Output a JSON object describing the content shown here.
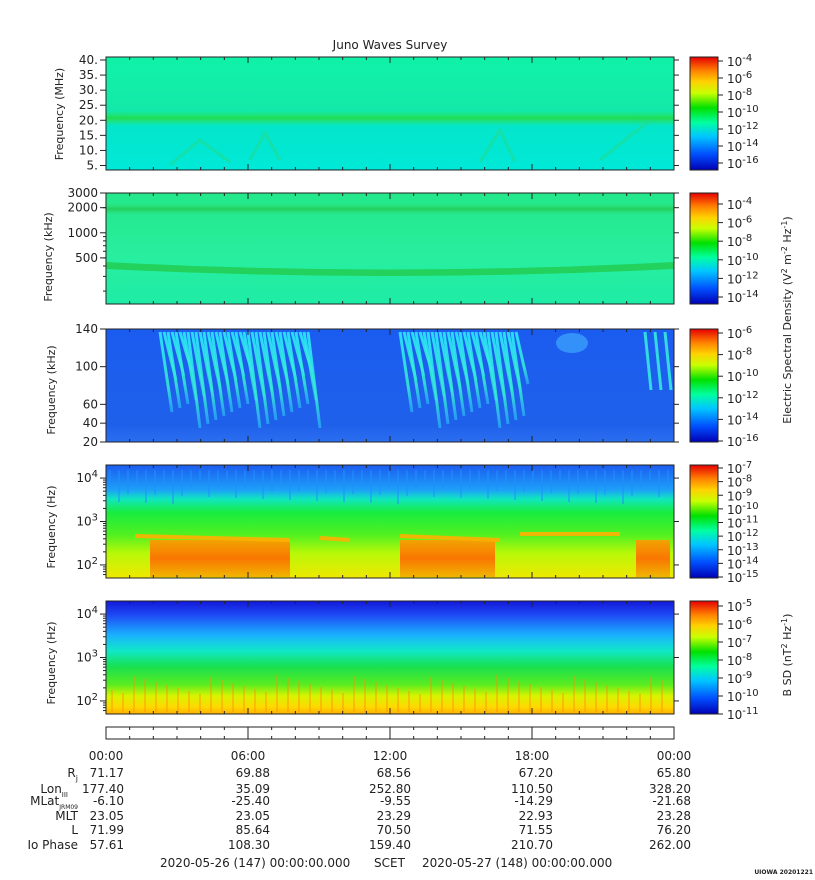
{
  "chart_data": {
    "type": "heatmap",
    "title": "Juno Waves Survey",
    "panels": [
      {
        "ylabel": "Frequency (MHz)",
        "scale": "linear",
        "ylim": [
          3.5,
          41
        ],
        "yticks": [
          5,
          10,
          15,
          20,
          25,
          30,
          35,
          40
        ],
        "ytick_labels": [
          "5.",
          "10.",
          "15.",
          "20.",
          "25.",
          "30.",
          "35.",
          "40."
        ],
        "cbar_labels": [
          {
            "base": "10",
            "exp": "-4"
          },
          {
            "base": "10",
            "exp": "-6"
          },
          {
            "base": "10",
            "exp": "-8"
          },
          {
            "base": "10",
            "exp": "-10"
          },
          {
            "base": "10",
            "exp": "-12"
          },
          {
            "base": "10",
            "exp": "-14"
          },
          {
            "base": "10",
            "exp": "-16"
          }
        ]
      },
      {
        "ylabel": "Frequency (kHz)",
        "scale": "log",
        "ylim": [
          140,
          3000
        ],
        "yticks": [
          500,
          1000,
          2000,
          3000
        ],
        "ytick_labels": [
          "500",
          "1000",
          "2000",
          "3000"
        ],
        "cbar_labels": [
          {
            "base": "10",
            "exp": "-4"
          },
          {
            "base": "10",
            "exp": "-6"
          },
          {
            "base": "10",
            "exp": "-8"
          },
          {
            "base": "10",
            "exp": "-10"
          },
          {
            "base": "10",
            "exp": "-12"
          },
          {
            "base": "10",
            "exp": "-14"
          }
        ]
      },
      {
        "ylabel": "Frequency (kHz)",
        "scale": "linear",
        "ylim": [
          20,
          140
        ],
        "yticks": [
          20,
          40,
          60,
          100,
          140
        ],
        "ytick_labels": [
          "20",
          "40",
          "60",
          "100",
          "140"
        ],
        "cbar_labels": [
          {
            "base": "10",
            "exp": "-6"
          },
          {
            "base": "10",
            "exp": "-8"
          },
          {
            "base": "10",
            "exp": "-10"
          },
          {
            "base": "10",
            "exp": "-12"
          },
          {
            "base": "10",
            "exp": "-14"
          },
          {
            "base": "10",
            "exp": "-16"
          }
        ]
      },
      {
        "ylabel": "Frequency (Hz)",
        "scale": "log",
        "ylim": [
          50,
          20000
        ],
        "yticks": [
          100,
          1000,
          10000
        ],
        "ytick_labels": [
          {
            "base": "10",
            "exp": "2"
          },
          {
            "base": "10",
            "exp": "3"
          },
          {
            "base": "10",
            "exp": "4"
          }
        ],
        "cbar_labels": [
          {
            "base": "10",
            "exp": "-7"
          },
          {
            "base": "10",
            "exp": "-8"
          },
          {
            "base": "10",
            "exp": "-9"
          },
          {
            "base": "10",
            "exp": "-10"
          },
          {
            "base": "10",
            "exp": "-11"
          },
          {
            "base": "10",
            "exp": "-12"
          },
          {
            "base": "10",
            "exp": "-13"
          },
          {
            "base": "10",
            "exp": "-14"
          },
          {
            "base": "10",
            "exp": "-15"
          }
        ]
      },
      {
        "ylabel": "Frequency (Hz)",
        "scale": "log",
        "ylim": [
          50,
          20000
        ],
        "yticks": [
          100,
          1000,
          10000
        ],
        "ytick_labels": [
          {
            "base": "10",
            "exp": "2"
          },
          {
            "base": "10",
            "exp": "3"
          },
          {
            "base": "10",
            "exp": "4"
          }
        ],
        "cbar_labels": [
          {
            "base": "10",
            "exp": "-5"
          },
          {
            "base": "10",
            "exp": "-6"
          },
          {
            "base": "10",
            "exp": "-7"
          },
          {
            "base": "10",
            "exp": "-8"
          },
          {
            "base": "10",
            "exp": "-9"
          },
          {
            "base": "10",
            "exp": "-10"
          },
          {
            "base": "10",
            "exp": "-11"
          }
        ]
      }
    ],
    "colorbar_titles": {
      "electric": {
        "prefix": "Electric Spectral Density (V",
        "s1": "2",
        "mid": " m",
        "s2": "-2",
        "mid2": " Hz",
        "s3": "-1",
        "suffix": ")"
      },
      "magnetic": {
        "prefix": "B SD (nT",
        "s1": "2",
        "mid2": " Hz",
        "s3": "-1",
        "suffix": ")"
      }
    },
    "x_ticks": [
      "00:00",
      "06:00",
      "12:00",
      "18:00",
      "00:00"
    ],
    "ephemeris": {
      "rows": [
        {
          "label": "R",
          "sub": "j",
          "values": [
            "71.17",
            "69.88",
            "68.56",
            "67.20",
            "65.80"
          ]
        },
        {
          "label": "Lon",
          "sub": "III",
          "values": [
            "177.40",
            "35.09",
            "252.80",
            "110.50",
            "328.20"
          ]
        },
        {
          "label": "MLat",
          "sub": "JRM09",
          "values": [
            "-6.10",
            "-25.40",
            "-9.55",
            "-14.29",
            "-21.68"
          ]
        },
        {
          "label": "MLT",
          "sub": "",
          "values": [
            "23.05",
            "23.05",
            "23.29",
            "22.93",
            "23.28"
          ]
        },
        {
          "label": "L",
          "sub": "",
          "values": [
            "71.99",
            "85.64",
            "70.50",
            "71.55",
            "76.20"
          ]
        },
        {
          "label": "Io Phase",
          "sub": "",
          "values": [
            "57.61",
            "108.30",
            "159.40",
            "210.70",
            "262.00"
          ]
        }
      ]
    },
    "time_range": {
      "start": "2020-05-26 (147) 00:00:00.000",
      "middle": "SCET",
      "end": "2020-05-27 (148) 00:00:00.000"
    },
    "footer_stamp": "UIOWA 20201221",
    "colors": {
      "colorbar": [
        "#0000b4",
        "#0050ff",
        "#00c8ff",
        "#00ffa0",
        "#00e000",
        "#c8ff00",
        "#ffd200",
        "#ff8000",
        "#e60000"
      ]
    }
  }
}
